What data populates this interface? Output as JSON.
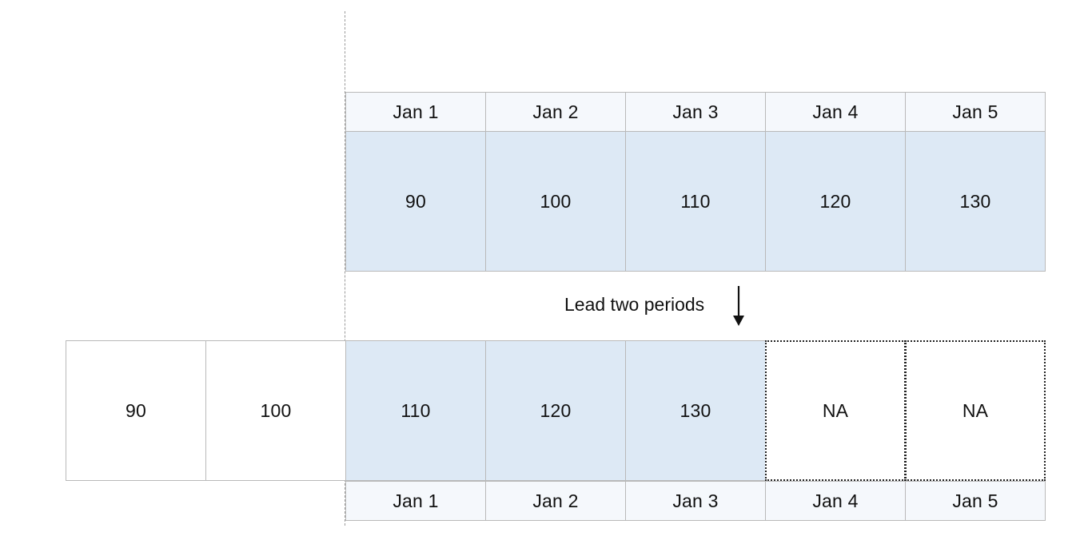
{
  "top_row": {
    "dates": [
      "Jan 1",
      "Jan 2",
      "Jan 3",
      "Jan 4",
      "Jan 5"
    ],
    "values": [
      "90",
      "100",
      "110",
      "120",
      "130"
    ]
  },
  "operation": {
    "label": "Lead two periods"
  },
  "bottom_row": {
    "shifted_out": [
      "90",
      "100"
    ],
    "values": [
      "110",
      "120",
      "130",
      "NA",
      "NA"
    ],
    "dates": [
      "Jan 1",
      "Jan 2",
      "Jan 3",
      "Jan 4",
      "Jan 5"
    ]
  },
  "colors": {
    "value_fill": "#dde9f5",
    "header_fill": "#f5f8fc",
    "border": "#b9b9b9",
    "guide_line": "#9a9a9a"
  }
}
